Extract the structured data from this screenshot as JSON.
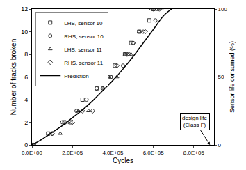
{
  "chart_data": {
    "type": "scatter",
    "xlabel": "Cycles",
    "ylabel": "Number of tracks broken",
    "y2label": "Sensor life consumed (%)",
    "xlim": [
      0,
      900000
    ],
    "xticks": [
      {
        "value": 0,
        "label": "0.0E+00"
      },
      {
        "value": 200000,
        "label": "2.0E+05"
      },
      {
        "value": 400000,
        "label": "4.0E+05"
      },
      {
        "value": 600000,
        "label": "6.0E+05"
      },
      {
        "value": 800000,
        "label": "8.0E+05"
      }
    ],
    "ylim": [
      0,
      12
    ],
    "yticks": [
      0,
      2,
      4,
      6,
      8,
      10,
      12
    ],
    "y2lim": [
      0,
      100
    ],
    "y2ticks": [
      0,
      50,
      100
    ],
    "grid": false,
    "legend": "top-left",
    "series": [
      {
        "name": "LHS, sensor 10",
        "type": "scatter",
        "marker": "square",
        "color": "#333333",
        "x": [
          5000,
          80000,
          160000,
          190000,
          250000,
          320000,
          380000,
          410000,
          460000,
          490000,
          530000,
          580000,
          600000
        ],
        "values": [
          0,
          1,
          2,
          2,
          4,
          5,
          6,
          7,
          8,
          9,
          10,
          11,
          12
        ]
      },
      {
        "name": "RHS, sensor 10",
        "type": "scatter",
        "marker": "circle",
        "color": "#333333",
        "x": [
          10000,
          100000,
          150000,
          220000,
          270000,
          350000,
          390000,
          450000,
          480000,
          500000,
          550000,
          610000,
          620000
        ],
        "values": [
          0,
          1,
          2,
          3,
          4,
          5,
          6,
          7,
          8,
          9,
          10,
          11,
          12
        ]
      },
      {
        "name": "LHS, sensor 11",
        "type": "scatter",
        "marker": "triangle-up",
        "color": "#333333",
        "x": [
          0,
          140000,
          180000,
          230000,
          280000,
          350000,
          380000,
          420000,
          460000,
          490000,
          530000,
          590000,
          640000
        ],
        "values": [
          0,
          1,
          2,
          3,
          3,
          5,
          6,
          6,
          8,
          8,
          10,
          12,
          12
        ]
      },
      {
        "name": "RHS, sensor 11",
        "type": "scatter",
        "marker": "diamond",
        "color": "#333333",
        "x": [
          5000,
          100000,
          200000,
          250000,
          300000,
          320000,
          390000,
          420000,
          470000,
          500000,
          560000,
          600000,
          630000
        ],
        "values": [
          0,
          1,
          2,
          3,
          3,
          5,
          6,
          7,
          8,
          9,
          10,
          12,
          12
        ]
      },
      {
        "name": "Prediction",
        "type": "line",
        "line_style": "solid",
        "color": "#000000",
        "x": [
          0,
          50000,
          100000,
          150000,
          200000,
          250000,
          300000,
          350000,
          400000,
          450000,
          500000,
          550000,
          600000,
          650000,
          690000
        ],
        "values": [
          0,
          0.5,
          1.1,
          1.7,
          2.4,
          3.1,
          3.9,
          4.8,
          5.7,
          6.7,
          7.8,
          9.0,
          10.2,
          11.4,
          12
        ]
      }
    ],
    "annotations": [
      {
        "text": [
          "design life",
          "(Class F)"
        ],
        "x": 880000,
        "y": 0
      }
    ]
  }
}
